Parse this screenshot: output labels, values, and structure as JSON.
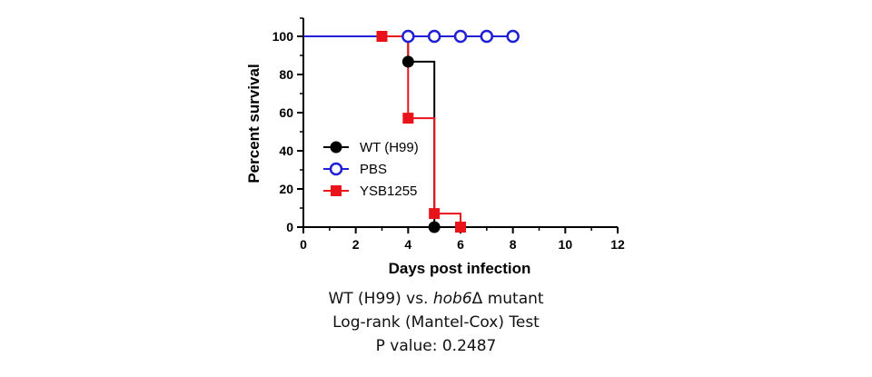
{
  "chart_data": {
    "type": "line",
    "style": "kaplan-meier step",
    "xlabel": "Days post infection",
    "ylabel": "Percent survival",
    "xlim": [
      0,
      12
    ],
    "ylim": [
      0,
      100
    ],
    "x_ticks": [
      "0",
      "2",
      "4",
      "6",
      "8",
      "10",
      "12"
    ],
    "y_ticks": [
      "0",
      "20",
      "40",
      "60",
      "80",
      "100"
    ],
    "grid": false,
    "legend_position": "left-middle",
    "series": [
      {
        "name": "WT (H99)",
        "color": "#000000",
        "marker": "filled-circle",
        "steps": [
          [
            0,
            100
          ],
          [
            4,
            100
          ],
          [
            4,
            86.7
          ],
          [
            5,
            86.7
          ],
          [
            5,
            0
          ]
        ],
        "points": [
          [
            4,
            86.7
          ],
          [
            5,
            0
          ]
        ]
      },
      {
        "name": "PBS",
        "color": "#1f1fd6",
        "marker": "open-circle",
        "steps": [
          [
            0,
            100
          ],
          [
            8,
            100
          ]
        ],
        "points": [
          [
            4,
            100
          ],
          [
            5,
            100
          ],
          [
            6,
            100
          ],
          [
            7,
            100
          ],
          [
            8,
            100
          ]
        ]
      },
      {
        "name": "YSB1255",
        "color": "#e8141a",
        "marker": "filled-square",
        "steps": [
          [
            3,
            100
          ],
          [
            4,
            100
          ],
          [
            4,
            57.1
          ],
          [
            5,
            57.1
          ],
          [
            5,
            7.1
          ],
          [
            6,
            7.1
          ],
          [
            6,
            0
          ]
        ],
        "points": [
          [
            3,
            100
          ],
          [
            4,
            57.1
          ],
          [
            5,
            7.1
          ],
          [
            6,
            0
          ]
        ]
      }
    ]
  },
  "caption": {
    "line1_pre": "WT (H99) vs. ",
    "line1_italic": "hob6",
    "line1_post": "Δ mutant",
    "line2": "Log-rank (Mantel-Cox) Test",
    "line3": "P value: 0.2487"
  }
}
